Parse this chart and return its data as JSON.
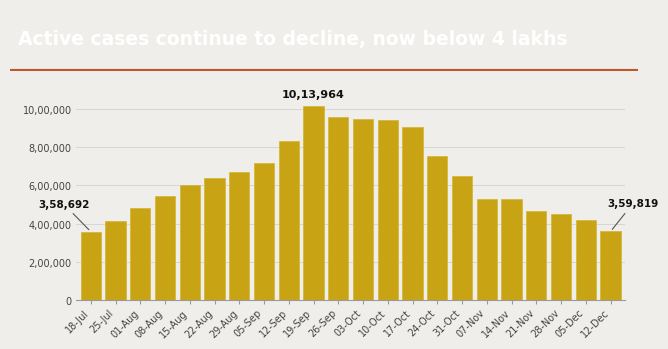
{
  "title": "Active cases continue to decline, now below 4 lakhs",
  "title_bg": "#1e3358",
  "title_color": "#ffffff",
  "bar_color": "#c8a415",
  "bar_edge_color": "#d4b430",
  "background_color": "#f0eeea",
  "labels": [
    "18-Jul",
    "25-Jul",
    "01-Aug",
    "08-Aug",
    "15-Aug",
    "22-Aug",
    "29-Aug",
    "05-Sep",
    "12-Sep",
    "19-Sep",
    "26-Sep",
    "03-Oct",
    "10-Oct",
    "17-Oct",
    "24-Oct",
    "31-Oct",
    "07-Nov",
    "14-Nov",
    "21-Nov",
    "28-Nov",
    "05-Dec",
    "12-Dec"
  ],
  "values": [
    358692,
    415000,
    480000,
    545000,
    600000,
    640000,
    670000,
    720000,
    830000,
    1013964,
    960000,
    950000,
    940000,
    905000,
    755000,
    650000,
    530000,
    530000,
    465000,
    450000,
    420000,
    359819
  ],
  "yticks": [
    0,
    200000,
    400000,
    600000,
    800000,
    1000000
  ],
  "ytick_labels": [
    "0",
    "2,00,000",
    "4,00,000",
    "6,00,000",
    "8,00,000",
    "10,00,000"
  ],
  "ylim": [
    0,
    1150000
  ],
  "peak_label": "10,13,964",
  "peak_index": 9,
  "first_label": "3,58,692",
  "first_index": 0,
  "last_label": "3,59,819",
  "last_index": 21,
  "title_fontsize": 13.5,
  "tick_fontsize": 7,
  "annot_fontsize": 7.5
}
